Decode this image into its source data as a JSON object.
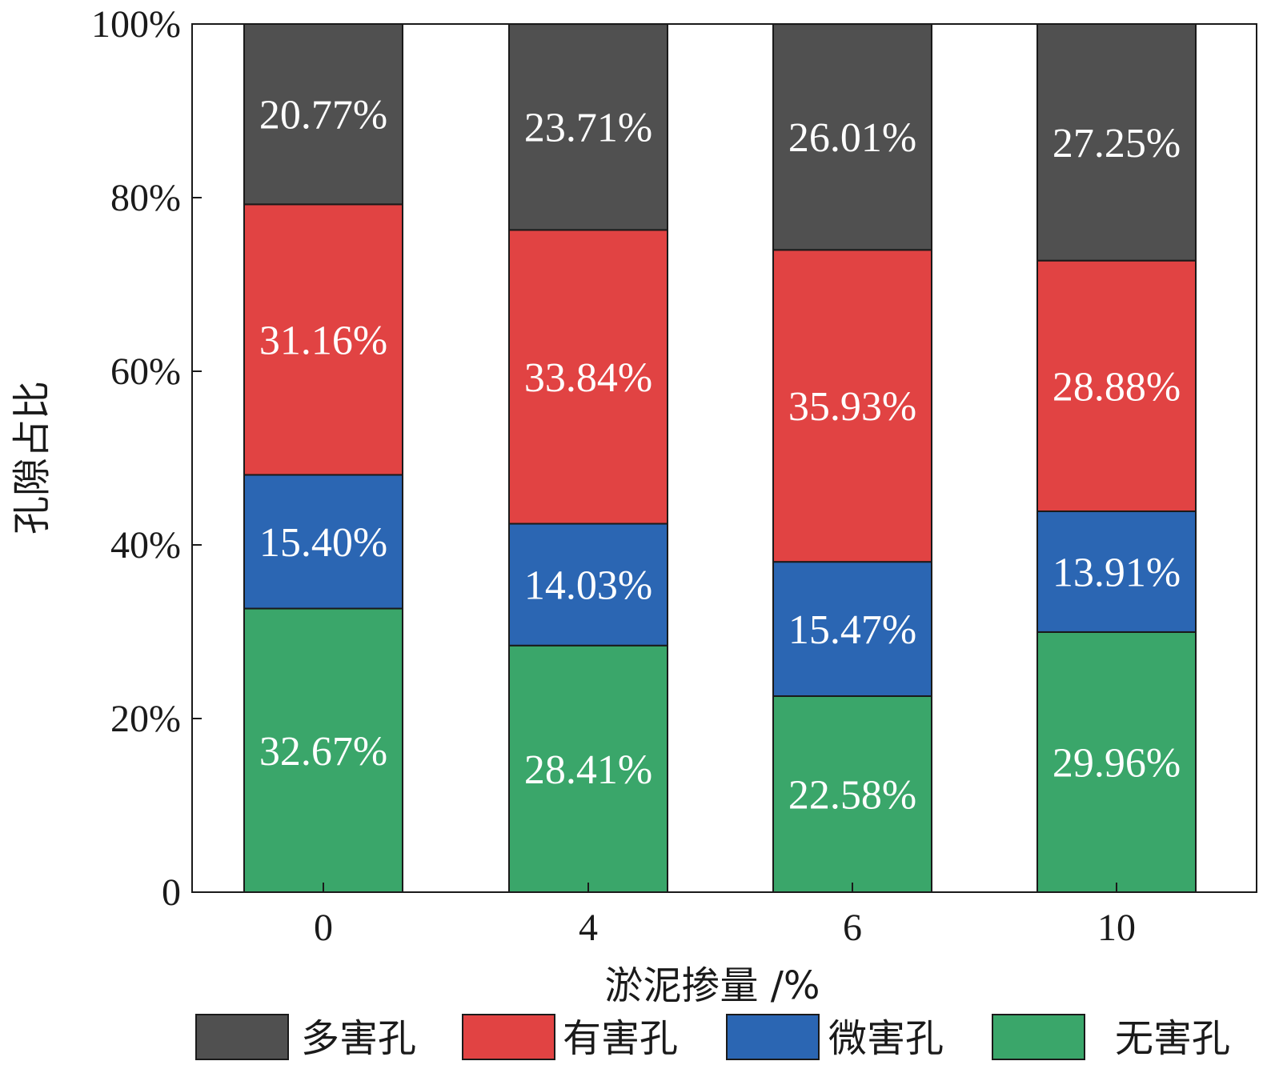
{
  "chart_data": {
    "type": "bar",
    "stacked": true,
    "categories": [
      "0",
      "4",
      "6",
      "10"
    ],
    "series": [
      {
        "name": "无害孔",
        "color": "#3aa66a",
        "values": [
          32.67,
          28.41,
          22.58,
          29.96
        ],
        "labels": [
          "32.67%",
          "28.41%",
          "22.58%",
          "29.96%"
        ]
      },
      {
        "name": "微害孔",
        "color": "#2b66b3",
        "values": [
          15.4,
          14.03,
          15.47,
          13.91
        ],
        "labels": [
          "15.40%",
          "14.03%",
          "15.47%",
          "13.91%"
        ]
      },
      {
        "name": "有害孔",
        "color": "#e14343",
        "values": [
          31.16,
          33.84,
          35.93,
          28.88
        ],
        "labels": [
          "31.16%",
          "33.84%",
          "35.93%",
          "28.88%"
        ]
      },
      {
        "name": "多害孔",
        "color": "#505050",
        "values": [
          20.77,
          23.71,
          26.01,
          27.25
        ],
        "labels": [
          "20.77%",
          "23.71%",
          "26.01%",
          "27.25%"
        ]
      }
    ],
    "legend_order": [
      "多害孔",
      "有害孔",
      "微害孔",
      "无害孔"
    ],
    "legend_position": "bottom",
    "xlabel": "淤泥掺量 /%",
    "ylabel": "孔隙占比",
    "ylim": [
      0,
      100
    ],
    "yticks": [
      0,
      20,
      40,
      60,
      80,
      100
    ],
    "ytick_labels": [
      "0",
      "20%",
      "40%",
      "60%",
      "80%",
      "100%"
    ],
    "grid": false
  }
}
